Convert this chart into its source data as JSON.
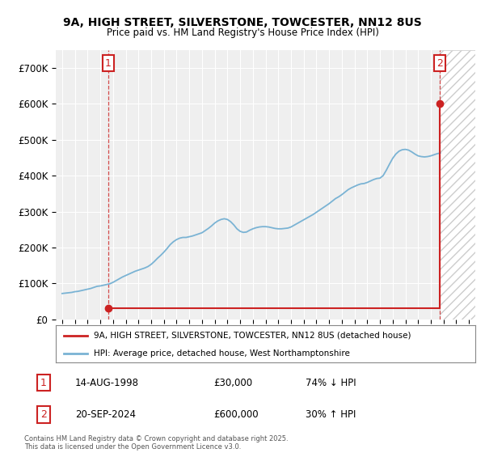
{
  "title_line1": "9A, HIGH STREET, SILVERSTONE, TOWCESTER, NN12 8US",
  "title_line2": "Price paid vs. HM Land Registry's House Price Index (HPI)",
  "background_color": "#ffffff",
  "plot_bg_color": "#efefef",
  "grid_color": "#ffffff",
  "hpi_color": "#7ab3d4",
  "price_color": "#cc2222",
  "sale1_year": 1998.62,
  "sale1_price": 30000,
  "sale2_year": 2024.72,
  "sale2_price": 600000,
  "ylim_min": 0,
  "ylim_max": 750000,
  "xlim_min": 1994.5,
  "xlim_max": 2027.5,
  "legend_line1": "9A, HIGH STREET, SILVERSTONE, TOWCESTER, NN12 8US (detached house)",
  "legend_line2": "HPI: Average price, detached house, West Northamptonshire",
  "table_row1": [
    "1",
    "14-AUG-1998",
    "£30,000",
    "74% ↓ HPI"
  ],
  "table_row2": [
    "2",
    "20-SEP-2024",
    "£600,000",
    "30% ↑ HPI"
  ],
  "footnote": "Contains HM Land Registry data © Crown copyright and database right 2025.\nThis data is licensed under the Open Government Licence v3.0.",
  "yticks": [
    0,
    100000,
    200000,
    300000,
    400000,
    500000,
    600000,
    700000
  ],
  "ytick_labels": [
    "£0",
    "£100K",
    "£200K",
    "£300K",
    "£400K",
    "£500K",
    "£600K",
    "£700K"
  ],
  "hpi_years": [
    1995.0,
    1995.25,
    1995.5,
    1995.75,
    1996.0,
    1996.25,
    1996.5,
    1996.75,
    1997.0,
    1997.25,
    1997.5,
    1997.75,
    1998.0,
    1998.25,
    1998.5,
    1998.75,
    1999.0,
    1999.25,
    1999.5,
    1999.75,
    2000.0,
    2000.25,
    2000.5,
    2000.75,
    2001.0,
    2001.25,
    2001.5,
    2001.75,
    2002.0,
    2002.25,
    2002.5,
    2002.75,
    2003.0,
    2003.25,
    2003.5,
    2003.75,
    2004.0,
    2004.25,
    2004.5,
    2004.75,
    2005.0,
    2005.25,
    2005.5,
    2005.75,
    2006.0,
    2006.25,
    2006.5,
    2006.75,
    2007.0,
    2007.25,
    2007.5,
    2007.75,
    2008.0,
    2008.25,
    2008.5,
    2008.75,
    2009.0,
    2009.25,
    2009.5,
    2009.75,
    2010.0,
    2010.25,
    2010.5,
    2010.75,
    2011.0,
    2011.25,
    2011.5,
    2011.75,
    2012.0,
    2012.25,
    2012.5,
    2012.75,
    2013.0,
    2013.25,
    2013.5,
    2013.75,
    2014.0,
    2014.25,
    2014.5,
    2014.75,
    2015.0,
    2015.25,
    2015.5,
    2015.75,
    2016.0,
    2016.25,
    2016.5,
    2016.75,
    2017.0,
    2017.25,
    2017.5,
    2017.75,
    2018.0,
    2018.25,
    2018.5,
    2018.75,
    2019.0,
    2019.25,
    2019.5,
    2019.75,
    2020.0,
    2020.25,
    2020.5,
    2020.75,
    2021.0,
    2021.25,
    2021.5,
    2021.75,
    2022.0,
    2022.25,
    2022.5,
    2022.75,
    2023.0,
    2023.25,
    2023.5,
    2023.75,
    2024.0,
    2024.25,
    2024.5,
    2024.75
  ],
  "hpi_values": [
    72000,
    73000,
    74000,
    75000,
    77000,
    78000,
    80000,
    82000,
    84000,
    86000,
    89000,
    92000,
    93000,
    95000,
    97000,
    99000,
    103000,
    108000,
    113000,
    118000,
    122000,
    126000,
    130000,
    134000,
    137000,
    140000,
    143000,
    147000,
    153000,
    161000,
    170000,
    178000,
    187000,
    197000,
    208000,
    216000,
    222000,
    226000,
    228000,
    228000,
    230000,
    232000,
    235000,
    238000,
    241000,
    247000,
    253000,
    260000,
    268000,
    274000,
    278000,
    280000,
    278000,
    272000,
    263000,
    252000,
    245000,
    242000,
    243000,
    248000,
    252000,
    255000,
    257000,
    258000,
    258000,
    257000,
    255000,
    253000,
    252000,
    252000,
    253000,
    254000,
    257000,
    262000,
    267000,
    272000,
    277000,
    282000,
    287000,
    292000,
    298000,
    304000,
    310000,
    316000,
    322000,
    329000,
    336000,
    341000,
    347000,
    354000,
    361000,
    366000,
    370000,
    374000,
    377000,
    378000,
    381000,
    385000,
    389000,
    392000,
    393000,
    400000,
    415000,
    432000,
    448000,
    460000,
    468000,
    472000,
    473000,
    471000,
    466000,
    460000,
    455000,
    453000,
    452000,
    453000,
    455000,
    458000,
    461000,
    463000
  ]
}
